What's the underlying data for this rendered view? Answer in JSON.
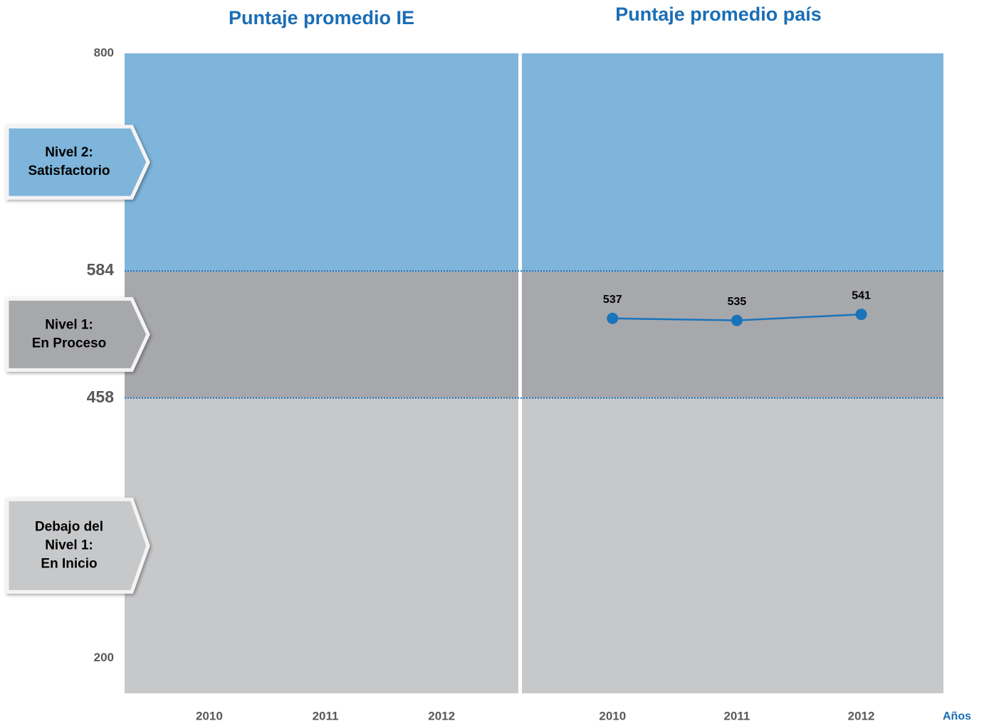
{
  "chart_data": {
    "type": "line",
    "ylim": [
      165,
      800
    ],
    "yticks": [
      800,
      584,
      458,
      200
    ],
    "x_label": "Años",
    "bands": [
      {
        "label_lines": [
          "Nivel 2:",
          "Satisfactorio"
        ],
        "color": "#7fb5db",
        "lower": 584
      },
      {
        "label_lines": [
          "Nivel 1:",
          "En Proceso"
        ],
        "color": "#a7a8ab",
        "lower": 458
      },
      {
        "label_lines": [
          "Debajo del",
          "Nivel 1:",
          "En Inicio"
        ],
        "color": "#c7c8ca"
      }
    ],
    "panels": [
      {
        "title": "Puntaje promedio IE",
        "categories": [
          "2010",
          "2011",
          "2012"
        ],
        "series": [
          {
            "color": "#1a74bb",
            "values": [
              null,
              null,
              null
            ]
          }
        ]
      },
      {
        "title": "Puntaje promedio país",
        "categories": [
          "2010",
          "2011",
          "2012"
        ],
        "series": [
          {
            "color": "#1a74bb",
            "values": [
              537,
              535,
              541
            ]
          }
        ]
      }
    ]
  }
}
